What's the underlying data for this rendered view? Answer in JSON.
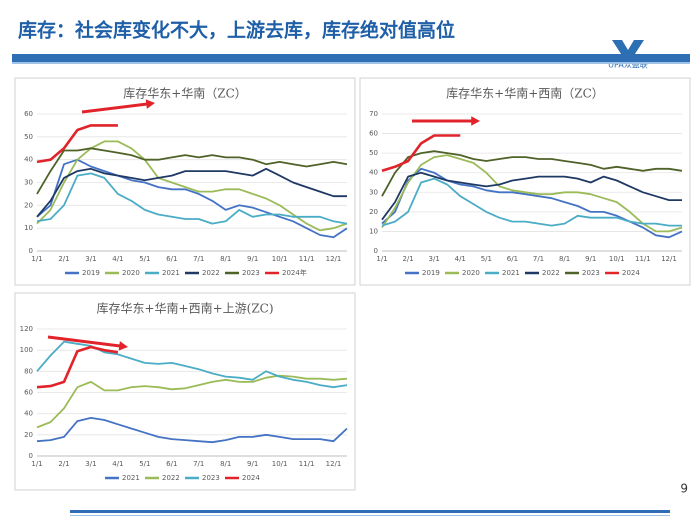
{
  "header": {
    "title": "库存：社会库变化不大，上游去库，库存绝对值高位",
    "logo": "UPA众盈联"
  },
  "page_number": "9",
  "chart_data": [
    {
      "type": "line",
      "title": "库存华东+华南（ZC）",
      "categories": [
        "1/1",
        null,
        "2/1",
        null,
        "3/1",
        null,
        "4/1",
        null,
        "5/1",
        null,
        "6/1",
        null,
        "7/1",
        null,
        "8/1",
        null,
        "9/1",
        null,
        "10/1",
        null,
        "11/1",
        null,
        "12/1",
        null
      ],
      "ylim": [
        0,
        60
      ],
      "yticks": [
        0,
        10,
        20,
        30,
        40,
        50,
        60
      ],
      "grid": true,
      "series": [
        {
          "name": "2019",
          "color": "#4472c4",
          "values": [
            15,
            20,
            38,
            40,
            37,
            35,
            33,
            31,
            30,
            28,
            27,
            27,
            25,
            22,
            18,
            20,
            19,
            17,
            15,
            13,
            10,
            7,
            6,
            10
          ]
        },
        {
          "name": "2020",
          "color": "#9bbb59",
          "values": [
            12,
            18,
            30,
            40,
            45,
            48,
            48,
            45,
            40,
            32,
            30,
            28,
            26,
            26,
            27,
            27,
            25,
            23,
            20,
            16,
            12,
            9,
            10,
            12
          ]
        },
        {
          "name": "2021",
          "color": "#4bacc6",
          "values": [
            13,
            14,
            20,
            33,
            34,
            32,
            25,
            22,
            18,
            16,
            15,
            14,
            14,
            12,
            13,
            18,
            15,
            16,
            16,
            15,
            15,
            15,
            13,
            12
          ]
        },
        {
          "name": "2022",
          "color": "#1f3864",
          "values": [
            15,
            22,
            32,
            35,
            36,
            34,
            33,
            32,
            31,
            32,
            33,
            35,
            35,
            35,
            35,
            34,
            33,
            36,
            33,
            30,
            28,
            26,
            24,
            24
          ]
        },
        {
          "name": "2023",
          "color": "#4f6228",
          "values": [
            25,
            35,
            44,
            44,
            45,
            44,
            43,
            42,
            40,
            40,
            41,
            42,
            41,
            42,
            41,
            41,
            40,
            38,
            39,
            38,
            37,
            38,
            39,
            38
          ]
        },
        {
          "name": "2024年",
          "color": "#e0242a",
          "values": [
            39,
            40,
            45,
            53,
            55,
            55,
            55,
            null,
            null,
            null,
            null,
            null,
            null,
            null,
            null,
            null,
            null,
            null,
            null,
            null,
            null,
            null,
            null,
            null
          ]
        }
      ]
    },
    {
      "type": "line",
      "title": "库存华东+华南+西南（ZC）",
      "categories": [
        "1/1",
        null,
        "2/1",
        null,
        "3/1",
        null,
        "4/1",
        null,
        "5/1",
        null,
        "6/1",
        null,
        "7/1",
        null,
        "8/1",
        null,
        "9/1",
        null,
        "10/1",
        null,
        "11/1",
        null,
        "12/1",
        null
      ],
      "ylim": [
        0,
        70
      ],
      "yticks": [
        0,
        10,
        20,
        30,
        40,
        50,
        60,
        70
      ],
      "grid": true,
      "series": [
        {
          "name": "2019",
          "color": "#4472c4",
          "values": [
            14,
            20,
            36,
            42,
            40,
            36,
            34,
            33,
            31,
            30,
            30,
            29,
            28,
            27,
            25,
            23,
            20,
            20,
            18,
            15,
            12,
            8,
            7,
            10
          ]
        },
        {
          "name": "2020",
          "color": "#9bbb59",
          "values": [
            12,
            22,
            35,
            44,
            48,
            49,
            47,
            45,
            40,
            33,
            31,
            30,
            29,
            29,
            30,
            30,
            29,
            27,
            25,
            20,
            14,
            10,
            10,
            12
          ]
        },
        {
          "name": "2021",
          "color": "#4bacc6",
          "values": [
            13,
            15,
            20,
            35,
            37,
            34,
            28,
            24,
            20,
            17,
            15,
            15,
            14,
            13,
            14,
            18,
            17,
            17,
            17,
            15,
            14,
            14,
            13,
            13
          ]
        },
        {
          "name": "2022",
          "color": "#1f3864",
          "values": [
            16,
            25,
            38,
            40,
            38,
            36,
            35,
            34,
            33,
            34,
            36,
            37,
            38,
            38,
            38,
            37,
            35,
            38,
            36,
            33,
            30,
            28,
            26,
            26
          ]
        },
        {
          "name": "2023",
          "color": "#4f6228",
          "values": [
            28,
            40,
            48,
            50,
            51,
            50,
            49,
            47,
            46,
            47,
            48,
            48,
            47,
            47,
            46,
            45,
            44,
            42,
            43,
            42,
            41,
            42,
            42,
            41
          ]
        },
        {
          "name": "2024",
          "color": "#e0242a",
          "values": [
            41,
            43,
            46,
            55,
            59,
            59,
            59,
            null,
            null,
            null,
            null,
            null,
            null,
            null,
            null,
            null,
            null,
            null,
            null,
            null,
            null,
            null,
            null,
            null
          ]
        }
      ]
    },
    {
      "type": "line",
      "title": "库存华东+华南+西南+上游(ZC)",
      "categories": [
        "1/1",
        null,
        "2/1",
        null,
        "3/1",
        null,
        "4/1",
        null,
        "5/1",
        null,
        "6/1",
        null,
        "7/1",
        null,
        "8/1",
        null,
        "9/1",
        null,
        "10/1",
        null,
        "11/1",
        null,
        "12/1",
        null
      ],
      "ylim": [
        0,
        120
      ],
      "yticks": [
        0,
        20,
        40,
        60,
        80,
        100,
        120
      ],
      "grid": true,
      "series": [
        {
          "name": "2021",
          "color": "#4472c4",
          "values": [
            14,
            15,
            18,
            33,
            36,
            34,
            30,
            26,
            22,
            18,
            16,
            15,
            14,
            13,
            15,
            18,
            18,
            20,
            18,
            16,
            16,
            16,
            14,
            26
          ]
        },
        {
          "name": "2022",
          "color": "#9bbb59",
          "values": [
            27,
            32,
            45,
            65,
            70,
            62,
            62,
            65,
            66,
            65,
            63,
            64,
            67,
            70,
            72,
            70,
            70,
            74,
            76,
            75,
            73,
            73,
            72,
            73
          ]
        },
        {
          "name": "2023",
          "color": "#4bacc6",
          "values": [
            80,
            95,
            108,
            106,
            104,
            98,
            96,
            92,
            88,
            87,
            88,
            85,
            82,
            78,
            75,
            74,
            72,
            80,
            75,
            72,
            70,
            67,
            65,
            67
          ]
        },
        {
          "name": "2024",
          "color": "#e0242a",
          "values": [
            65,
            66,
            70,
            99,
            103,
            100,
            98,
            null,
            null,
            null,
            null,
            null,
            null,
            null,
            null,
            null,
            null,
            null,
            null,
            null,
            null,
            null,
            null,
            null
          ]
        }
      ]
    }
  ]
}
